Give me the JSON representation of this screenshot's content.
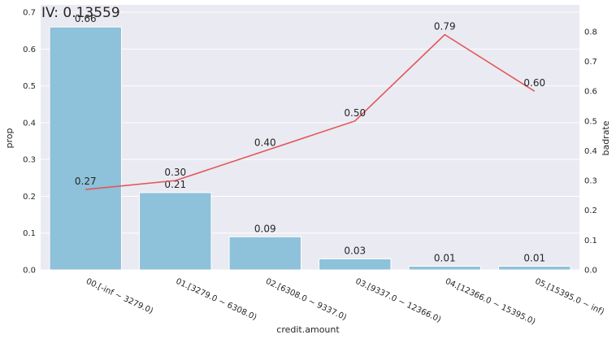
{
  "chart_data": {
    "type": "bar",
    "title": "IV: 0.13559",
    "xlabel": "credit.amount",
    "ylabel": "prop",
    "y2label": "badrate",
    "ylim": [
      0,
      0.72
    ],
    "y2lim": [
      0,
      0.89
    ],
    "yticks": [
      "0.0",
      "0.1",
      "0.2",
      "0.3",
      "0.4",
      "0.5",
      "0.6",
      "0.7"
    ],
    "y2ticks": [
      "0.0",
      "0.1",
      "0.2",
      "0.3",
      "0.4",
      "0.5",
      "0.6",
      "0.7",
      "0.8"
    ],
    "grid": true,
    "categories": [
      "00.[-inf ~ 3279.0)",
      "01.[3279.0 ~ 6308.0)",
      "02.[6308.0 ~ 9337.0)",
      "03.[9337.0 ~ 12366.0)",
      "04.[12366.0 ~ 15395.0)",
      "05.[15395.0 ~ inf)"
    ],
    "series": [
      {
        "type": "bar",
        "axis": "left",
        "values": [
          0.66,
          0.21,
          0.09,
          0.03,
          0.01,
          0.01
        ],
        "labels": [
          "0.66",
          "0.21",
          "0.09",
          "0.03",
          "0.01",
          "0.01"
        ]
      },
      {
        "type": "line",
        "axis": "right",
        "values": [
          0.27,
          0.3,
          0.4,
          0.5,
          0.79,
          0.6
        ],
        "labels": [
          "0.27",
          "0.30",
          "0.40",
          "0.50",
          "0.79",
          "0.60"
        ]
      }
    ],
    "colors": {
      "bar": "#8ec1da",
      "line": "#e15759",
      "background": "#eaeaf2",
      "grid": "#ffffff"
    }
  }
}
